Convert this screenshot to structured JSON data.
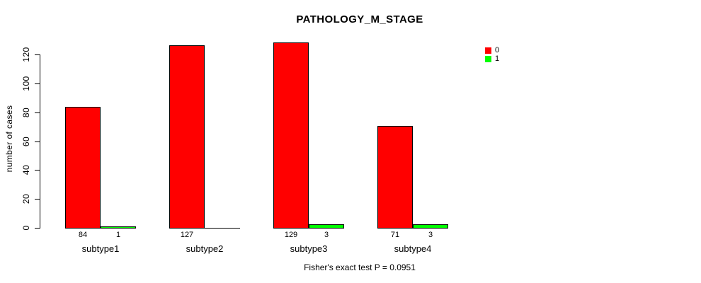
{
  "chart_data": {
    "type": "bar",
    "title": "PATHOLOGY_M_STAGE",
    "xlabel": "",
    "ylabel": "number of cases",
    "categories": [
      "subtype1",
      "subtype2",
      "subtype3",
      "subtype4"
    ],
    "series": [
      {
        "name": "0",
        "color": "#ff0000",
        "values": [
          84,
          127,
          129,
          71
        ]
      },
      {
        "name": "1",
        "color": "#00ff00",
        "values": [
          1,
          0,
          3,
          3
        ]
      }
    ],
    "yticks": [
      0,
      20,
      40,
      60,
      80,
      100,
      120
    ],
    "ylim": [
      0,
      130
    ],
    "grid": false,
    "legend_position": "top-right",
    "bar_value_labels": true,
    "hide_zero_value_labels": true,
    "annotation": "Fisher's exact test P = 0.0951",
    "colors": {
      "bar_border": "#000000",
      "axis": "#000000",
      "text": "#000000",
      "background": "#ffffff"
    }
  }
}
